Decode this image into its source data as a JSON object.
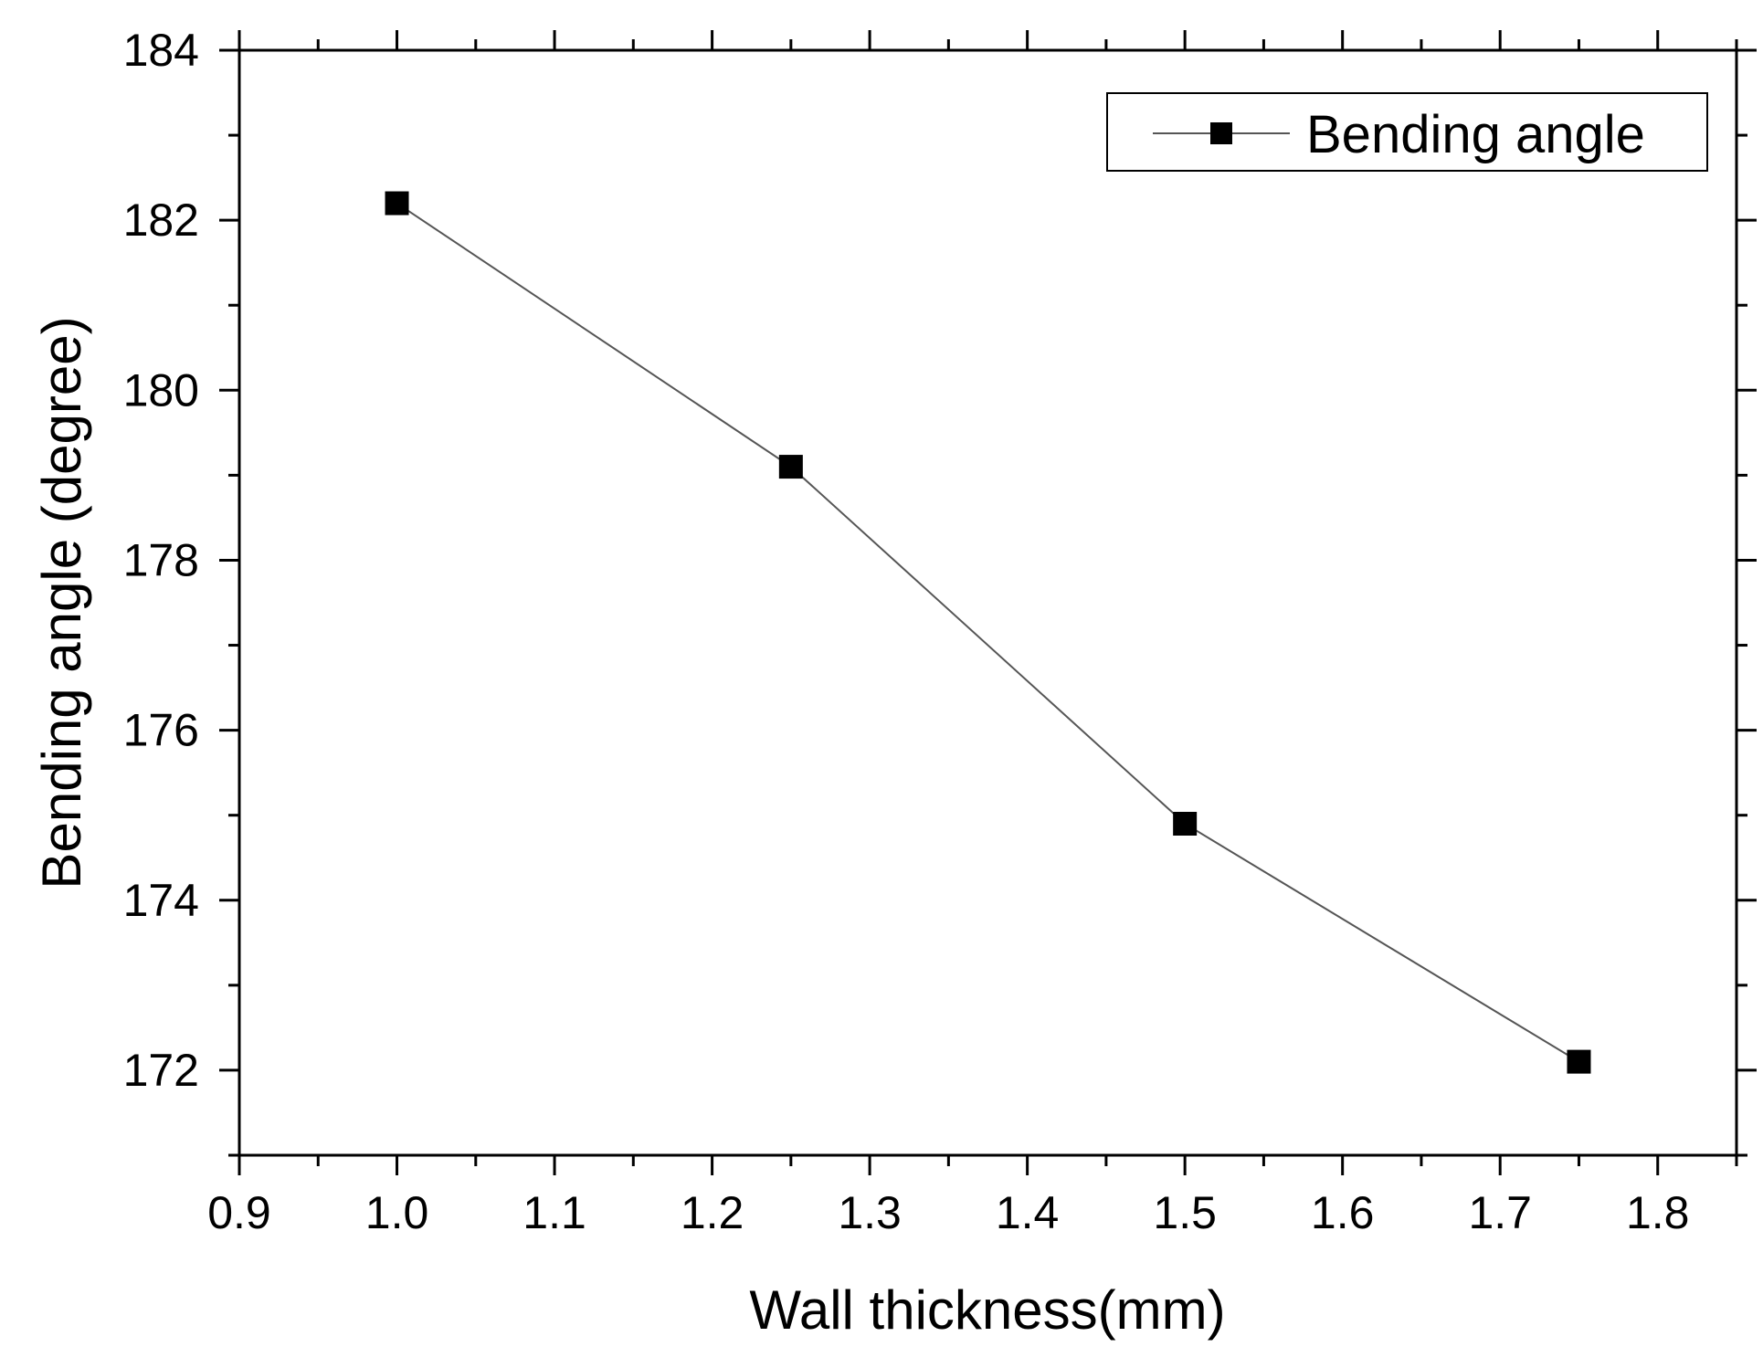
{
  "chart_data": {
    "type": "line",
    "title": "",
    "xlabel": "Wall thickness(mm)",
    "ylabel": "Bending angle (degree)",
    "xlim": [
      0.9,
      1.85
    ],
    "ylim": [
      171,
      184
    ],
    "x_ticks": [
      "0.9",
      "1.0",
      "1.1",
      "1.2",
      "1.3",
      "1.4",
      "1.5",
      "1.6",
      "1.7",
      "1.8"
    ],
    "y_ticks": [
      "172",
      "174",
      "176",
      "178",
      "180",
      "182",
      "184"
    ],
    "grid": false,
    "legend_position": "top-right",
    "series": [
      {
        "name": "Bending angle",
        "marker": "square",
        "color": "#000000",
        "line_color": "#555555",
        "x": [
          1.0,
          1.25,
          1.5,
          1.75
        ],
        "values": [
          182.2,
          179.1,
          174.9,
          172.1
        ]
      }
    ]
  }
}
